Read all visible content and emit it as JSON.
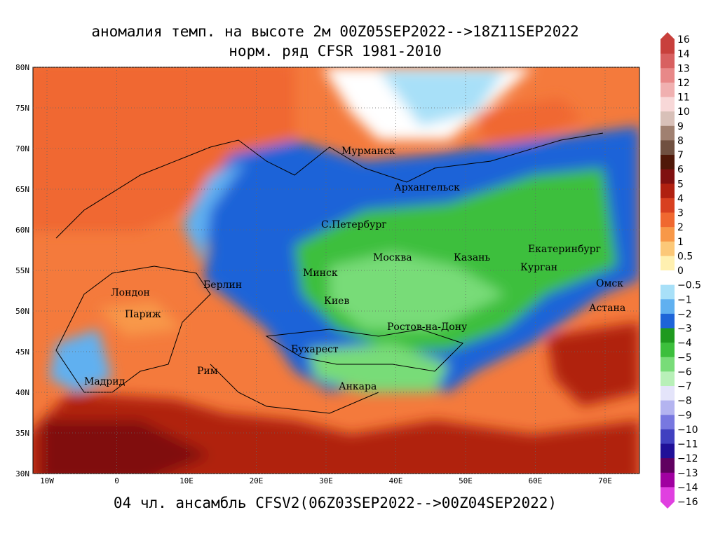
{
  "header": {
    "title": "аномалия темп. на высоте 2м 00Z05SEP2022-->18Z11SEP2022",
    "subtitle": "норм. ряд CFSR 1981-2010"
  },
  "footer": "04 чл. ансамбль CFSV2(06Z03SEP2022-->00Z04SEP2022)",
  "lat_labels": [
    "80N",
    "75N",
    "70N",
    "65N",
    "60N",
    "55N",
    "50N",
    "45N",
    "40N",
    "35N",
    "30N"
  ],
  "lon_labels": [
    "10W",
    "0",
    "10E",
    "20E",
    "30E",
    "40E",
    "50E",
    "60E",
    "70E"
  ],
  "cities": [
    "Мурманск",
    "Архангельск",
    "С.Петербург",
    "Москва",
    "Казань",
    "Екатеринбург",
    "Курган",
    "Минск",
    "Омск",
    "Берлин",
    "Лондон",
    "Париж",
    "Киев",
    "Астана",
    "Ростов-на-Дону",
    "Бухарест",
    "Рим",
    "Мадрид",
    "Анкара"
  ],
  "colorbar": {
    "labels": [
      "16",
      "14",
      "13",
      "12",
      "11",
      "10",
      "9",
      "8",
      "7",
      "6",
      "5",
      "4",
      "3",
      "2",
      "1",
      "0.5",
      "0",
      "−0.5",
      "−1",
      "−2",
      "−3",
      "−4",
      "−5",
      "−6",
      "−7",
      "−8",
      "−9",
      "−10",
      "−11",
      "−12",
      "−13",
      "−14",
      "−16"
    ],
    "colors": [
      "#c8403c",
      "#d86060",
      "#e88888",
      "#f0b0b0",
      "#f8d8d8",
      "#d8c0b8",
      "#a08070",
      "#705040",
      "#501808",
      "#801010",
      "#b02010",
      "#d84020",
      "#f06830",
      "#f89848",
      "#fcc878",
      "#fff0b0",
      "#ffffff",
      "#a8e0f8",
      "#60b0f0",
      "#1e64d8",
      "#1f9a1f",
      "#3cbf3c",
      "#78dc78",
      "#b8f0b8",
      "#e4e4fa",
      "#b4b4f0",
      "#7878e0",
      "#4040c0",
      "#201098",
      "#600060",
      "#a000a0",
      "#e040e0"
    ]
  }
}
